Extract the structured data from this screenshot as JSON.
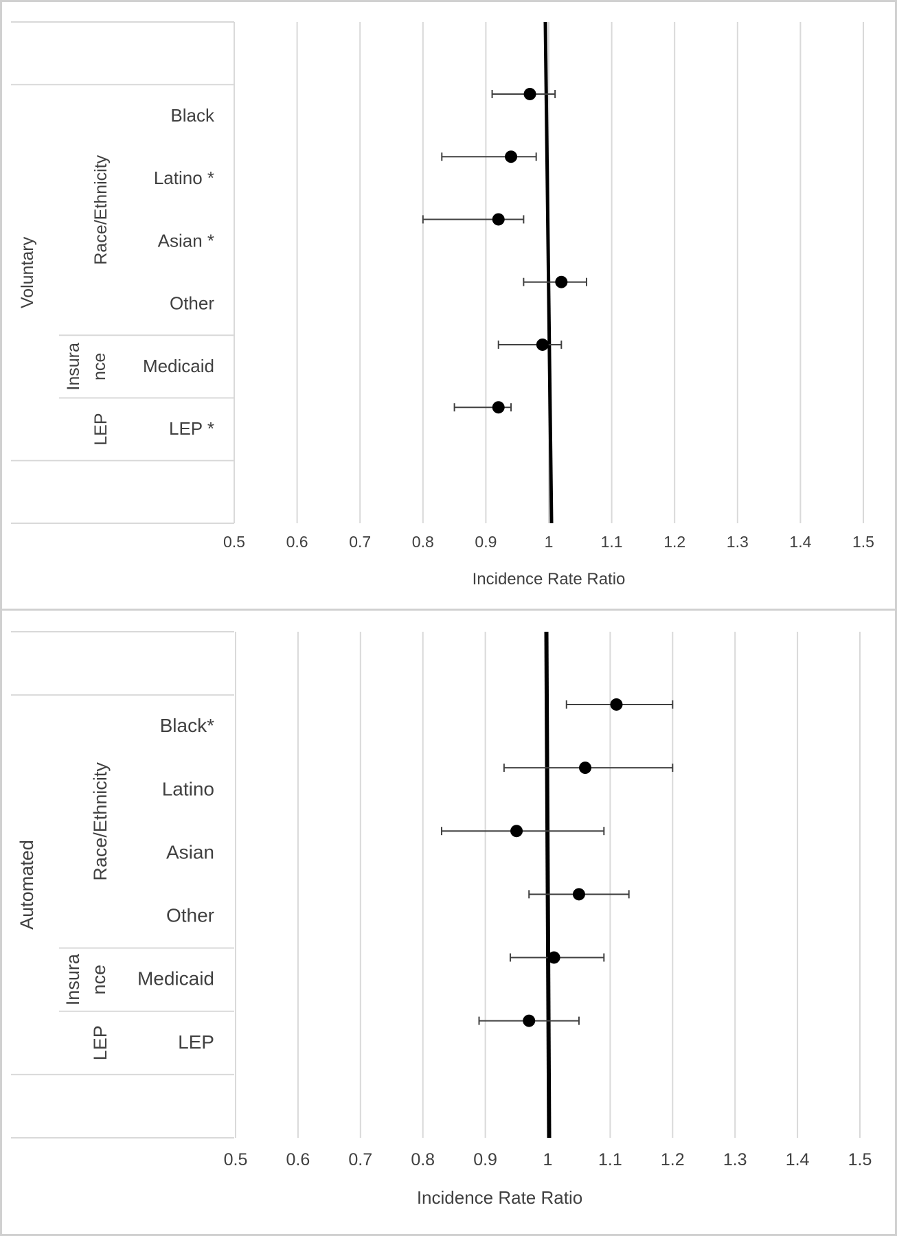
{
  "chart_data": [
    {
      "type": "scatter",
      "subtype": "forest-plot",
      "xlabel": "Incidence Rate Ratio",
      "xlim": [
        0.5,
        1.5
      ],
      "xticks": [
        "0.5",
        "0.6",
        "0.7",
        "0.8",
        "0.9",
        "1",
        "1.1",
        "1.2",
        "1.3",
        "1.4",
        "1.5"
      ],
      "reference_line": 1,
      "grid": "vertical",
      "outer_label": "Voluntary",
      "groups": [
        {
          "label": "Race/Ethnicity",
          "rows": [
            0,
            1,
            2,
            3
          ]
        },
        {
          "label": "Insura nce",
          "rows": [
            4
          ]
        },
        {
          "label": "LEP",
          "rows": [
            5
          ]
        }
      ],
      "categories": [
        "Black",
        "Latino *",
        "Asian *",
        "Other",
        "Medicaid",
        "LEP *"
      ],
      "series": [
        {
          "values": [
            0.97,
            0.94,
            0.92,
            1.02,
            0.99,
            0.92
          ],
          "ci_low": [
            0.91,
            0.83,
            0.8,
            0.96,
            0.92,
            0.85
          ],
          "ci_high": [
            1.01,
            0.98,
            0.96,
            1.06,
            1.02,
            0.94
          ]
        }
      ]
    },
    {
      "type": "scatter",
      "subtype": "forest-plot",
      "xlabel": "Incidence Rate Ratio",
      "xlim": [
        0.5,
        1.5
      ],
      "xticks": [
        "0.5",
        "0.6",
        "0.7",
        "0.8",
        "0.9",
        "1",
        "1.1",
        "1.2",
        "1.3",
        "1.4",
        "1.5"
      ],
      "reference_line": 1,
      "grid": "vertical",
      "outer_label": "Automated",
      "groups": [
        {
          "label": "Race/Ethnicity",
          "rows": [
            0,
            1,
            2,
            3
          ]
        },
        {
          "label": "Insura nce",
          "rows": [
            4
          ]
        },
        {
          "label": "LEP",
          "rows": [
            5
          ]
        }
      ],
      "categories": [
        "Black*",
        "Latino",
        "Asian",
        "Other",
        "Medicaid",
        "LEP"
      ],
      "series": [
        {
          "values": [
            1.11,
            1.06,
            0.95,
            1.05,
            1.01,
            0.97
          ],
          "ci_low": [
            1.03,
            0.93,
            0.83,
            0.97,
            0.94,
            0.89
          ],
          "ci_high": [
            1.2,
            1.2,
            1.09,
            1.13,
            1.09,
            1.05
          ]
        }
      ]
    }
  ]
}
